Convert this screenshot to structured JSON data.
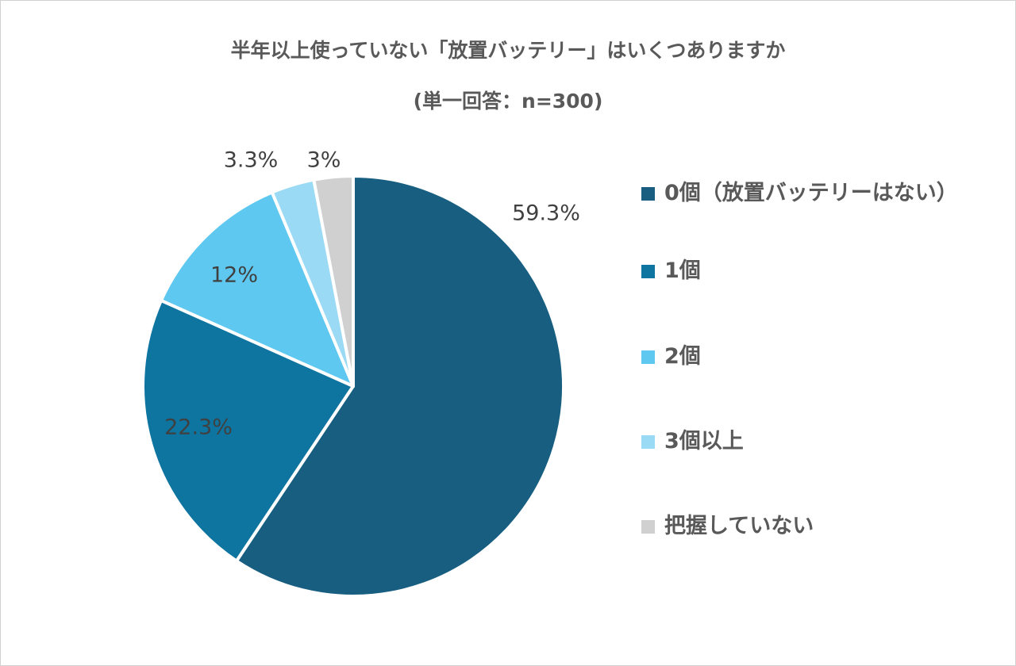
{
  "chart_data": {
    "type": "pie",
    "title": "半年以上使っていない「放置バッテリー」はいくつありますか",
    "subtitle": "(単一回答：n=300)",
    "categories": [
      "0個（放置バッテリーはない）",
      "1個",
      "2個",
      "3個以上",
      "把握していない"
    ],
    "values": [
      59.3,
      22.3,
      12,
      3.3,
      3
    ],
    "data_labels": [
      "59.3%",
      "22.3%",
      "12%",
      "3.3%",
      "3%"
    ],
    "colors": [
      "#175e80",
      "#0e74a0",
      "#5ec8f0",
      "#9bdaf5",
      "#d0d0d0"
    ],
    "start_angle": "top, clockwise",
    "legend_position": "right"
  }
}
